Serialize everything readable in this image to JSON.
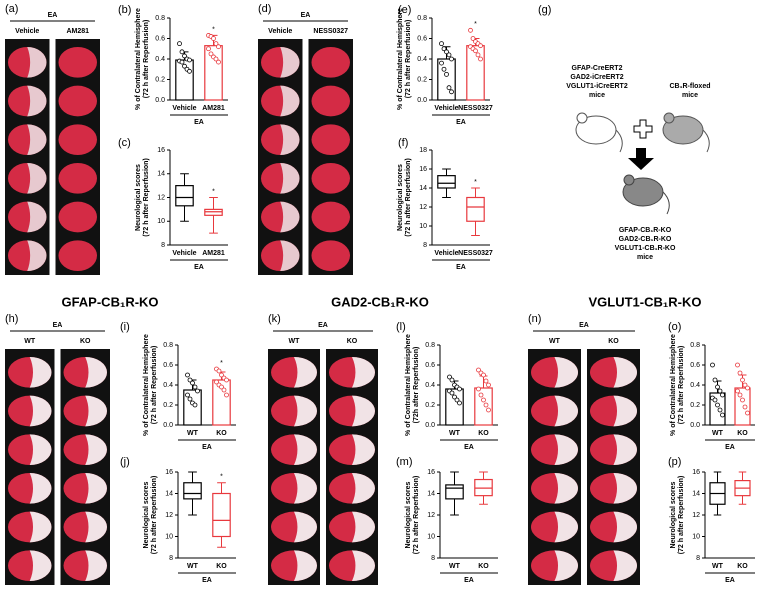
{
  "brain_panels": [
    {
      "label": "(a)",
      "group": "EA",
      "columns": [
        "Vehicle",
        "AM281"
      ]
    },
    {
      "label": "(d)",
      "group": "EA",
      "columns": [
        "Vehicle",
        "NESS0327"
      ]
    },
    {
      "label": "(h)",
      "group": "EA",
      "columns": [
        "WT",
        "KO"
      ]
    },
    {
      "label": "(k)",
      "group": "EA",
      "columns": [
        "WT",
        "KO"
      ]
    },
    {
      "label": "(n)",
      "group": "EA",
      "columns": [
        "WT",
        "KO"
      ]
    }
  ],
  "bar_panels": [
    {
      "label": "(b)",
      "ylabel": [
        "% of Contralateral Hemisphere",
        "(72 h after Reperfusion)"
      ],
      "ylim": [
        0,
        0.8
      ],
      "yticks": [
        {
          "value": 0,
          "label": "0.0"
        },
        0.2,
        0.4,
        0.6,
        0.8
      ],
      "group": "EA",
      "categories": [
        "Vehicle",
        "AM281"
      ],
      "colors": [
        "#000000",
        "#e8383d"
      ],
      "values": [
        0.39,
        0.53
      ],
      "errors": [
        0.08,
        0.1
      ],
      "points": [
        [
          0.55,
          0.47,
          0.43,
          0.4,
          0.39,
          0.38,
          0.37,
          0.33,
          0.3,
          0.28
        ],
        [
          0.63,
          0.62,
          0.6,
          0.55,
          0.52,
          0.5,
          0.45,
          0.42,
          0.4,
          0.37
        ]
      ],
      "stars": [
        null,
        "*"
      ]
    },
    {
      "label": "(e)",
      "ylabel": [
        "% of Contralateral Hemisphere",
        "(72 h after Reperfusion)"
      ],
      "ylim": [
        0,
        0.8
      ],
      "yticks": [
        {
          "value": 0,
          "label": "0.0"
        },
        0.2,
        0.4,
        0.6,
        0.8
      ],
      "group": "EA",
      "categories": [
        "Vehicle",
        "NESS0327"
      ],
      "colors": [
        "#000000",
        "#e8383d"
      ],
      "values": [
        0.4,
        0.53
      ],
      "errors": [
        0.12,
        0.07
      ],
      "points": [
        [
          0.55,
          0.5,
          0.47,
          0.44,
          0.4,
          0.36,
          0.3,
          0.25,
          0.12,
          0.08
        ],
        [
          0.68,
          0.6,
          0.57,
          0.55,
          0.53,
          0.52,
          0.5,
          0.48,
          0.44,
          0.4
        ]
      ],
      "stars": [
        null,
        "*"
      ]
    },
    {
      "label": "(i)",
      "ylabel": [
        "% of Contralateral Hemisphere",
        "(72 h after Reperfusion)"
      ],
      "ylim": [
        0,
        0.8
      ],
      "yticks": [
        {
          "value": 0,
          "label": "0.0"
        },
        0.2,
        0.4,
        0.6,
        0.8
      ],
      "group": "EA",
      "categories": [
        "WT",
        "KO"
      ],
      "colors": [
        "#000000",
        "#e8383d"
      ],
      "values": [
        0.35,
        0.45
      ],
      "errors": [
        0.1,
        0.08
      ],
      "points": [
        [
          0.5,
          0.45,
          0.42,
          0.38,
          0.34,
          0.3,
          0.26,
          0.22,
          0.2
        ],
        [
          0.56,
          0.54,
          0.5,
          0.47,
          0.45,
          0.43,
          0.4,
          0.38,
          0.35,
          0.3
        ]
      ],
      "stars": [
        null,
        "*"
      ]
    },
    {
      "label": "(l)",
      "ylabel": [
        "% of Contralateral Hemisphere",
        "(72h after Reperfusion)"
      ],
      "ylim": [
        0,
        0.8
      ],
      "yticks": [
        {
          "value": 0,
          "label": "0.0"
        },
        0.2,
        0.4,
        0.6,
        0.8
      ],
      "group": "EA",
      "categories": [
        "WT",
        "KO"
      ],
      "colors": [
        "#000000",
        "#e8383d"
      ],
      "values": [
        0.36,
        0.37
      ],
      "errors": [
        0.08,
        0.12
      ],
      "points": [
        [
          0.48,
          0.45,
          0.4,
          0.38,
          0.36,
          0.34,
          0.32,
          0.28,
          0.25,
          0.22
        ],
        [
          0.55,
          0.52,
          0.5,
          0.44,
          0.4,
          0.36,
          0.3,
          0.25,
          0.2,
          0.15
        ]
      ],
      "stars": [
        null,
        null
      ]
    },
    {
      "label": "(o)",
      "ylabel": [
        "% of Contralateral Hemisphere",
        "(72 h after Reperfusion)"
      ],
      "ylim": [
        0,
        0.8
      ],
      "yticks": [
        {
          "value": 0,
          "label": "0.0"
        },
        0.2,
        0.4,
        0.6,
        0.8
      ],
      "group": "EA",
      "categories": [
        "WT",
        "KO"
      ],
      "colors": [
        "#000000",
        "#e8383d"
      ],
      "values": [
        0.32,
        0.37
      ],
      "errors": [
        0.12,
        0.13
      ],
      "points": [
        [
          0.6,
          0.45,
          0.38,
          0.34,
          0.3,
          0.27,
          0.25,
          0.2,
          0.15,
          0.1
        ],
        [
          0.6,
          0.52,
          0.45,
          0.4,
          0.37,
          0.34,
          0.3,
          0.25,
          0.18,
          0.12
        ]
      ],
      "stars": [
        null,
        null
      ]
    }
  ],
  "box_panels": [
    {
      "label": "(c)",
      "ylabel": [
        "Neurological scores",
        "(72 h after Reperfusion)"
      ],
      "ylim": [
        8,
        16
      ],
      "yticks": [
        8,
        10,
        12,
        14,
        16
      ],
      "group": "EA",
      "categories": [
        "Vehicle",
        "AM281"
      ],
      "colors": [
        "#000000",
        "#e8383d"
      ],
      "boxes": [
        [
          10,
          11.3,
          12,
          13,
          14
        ],
        [
          9,
          10.5,
          10.8,
          11,
          12
        ]
      ],
      "stars": [
        null,
        "*"
      ]
    },
    {
      "label": "(f)",
      "ylabel": [
        "Neurological scores",
        "(72 h after Reperfusion)"
      ],
      "ylim": [
        8,
        18
      ],
      "yticks": [
        8,
        10,
        12,
        14,
        16,
        18
      ],
      "group": "EA",
      "categories": [
        "Vehicle",
        "NESS0327"
      ],
      "colors": [
        "#000000",
        "#e8383d"
      ],
      "boxes": [
        [
          13,
          14,
          14.5,
          15.3,
          16
        ],
        [
          9,
          10.5,
          12,
          13,
          14
        ]
      ],
      "stars": [
        null,
        "*"
      ]
    },
    {
      "label": "(j)",
      "ylabel": [
        "Neurological scores",
        "(72 h after Reperfusion)"
      ],
      "ylim": [
        8,
        16
      ],
      "yticks": [
        8,
        10,
        12,
        14,
        16
      ],
      "group": "EA",
      "categories": [
        "WT",
        "KO"
      ],
      "colors": [
        "#000000",
        "#e8383d"
      ],
      "boxes": [
        [
          12,
          13.5,
          14,
          15,
          16
        ],
        [
          9,
          10,
          11.5,
          14,
          15
        ]
      ],
      "stars": [
        null,
        "*"
      ]
    },
    {
      "label": "(m)",
      "ylabel": [
        "Neurological scores",
        "(72 h after Reperfusion)"
      ],
      "ylim": [
        8,
        16
      ],
      "yticks": [
        8,
        10,
        12,
        14,
        16
      ],
      "group": "EA",
      "categories": [
        "WT",
        "KO"
      ],
      "colors": [
        "#000000",
        "#e8383d"
      ],
      "boxes": [
        [
          12,
          13.5,
          14.5,
          14.8,
          16
        ],
        [
          13,
          13.8,
          14.5,
          15.3,
          16
        ]
      ],
      "stars": [
        null,
        null
      ]
    },
    {
      "label": "(p)",
      "ylabel": [
        "Neurological scores",
        "(72 h after Reperfusion)"
      ],
      "ylim": [
        8,
        16
      ],
      "yticks": [
        8,
        10,
        12,
        14,
        16
      ],
      "group": "EA",
      "categories": [
        "WT",
        "KO"
      ],
      "colors": [
        "#000000",
        "#e8383d"
      ],
      "boxes": [
        [
          12,
          13,
          14,
          15,
          16
        ],
        [
          13,
          13.8,
          14.5,
          15.2,
          16
        ]
      ],
      "stars": [
        null,
        null
      ]
    }
  ],
  "row_titles": [
    "GFAP-CB₁R-KO",
    "GAD2-CB₁R-KO",
    "VGLUT1-CB₁R-KO"
  ],
  "diagram": {
    "label": "(g)",
    "left_mouse": [
      "GFAP-CreERT2",
      "GAD2-iCreERT2",
      "VGLUT1-iCreERT2",
      "mice"
    ],
    "right_mouse": [
      "CB₁R-floxed",
      "mice"
    ],
    "result": [
      "GFAP-CB₁R-KO",
      "GAD2-CB₁R-KO",
      "VGLUT1-CB₁R-KO",
      "mice"
    ]
  }
}
